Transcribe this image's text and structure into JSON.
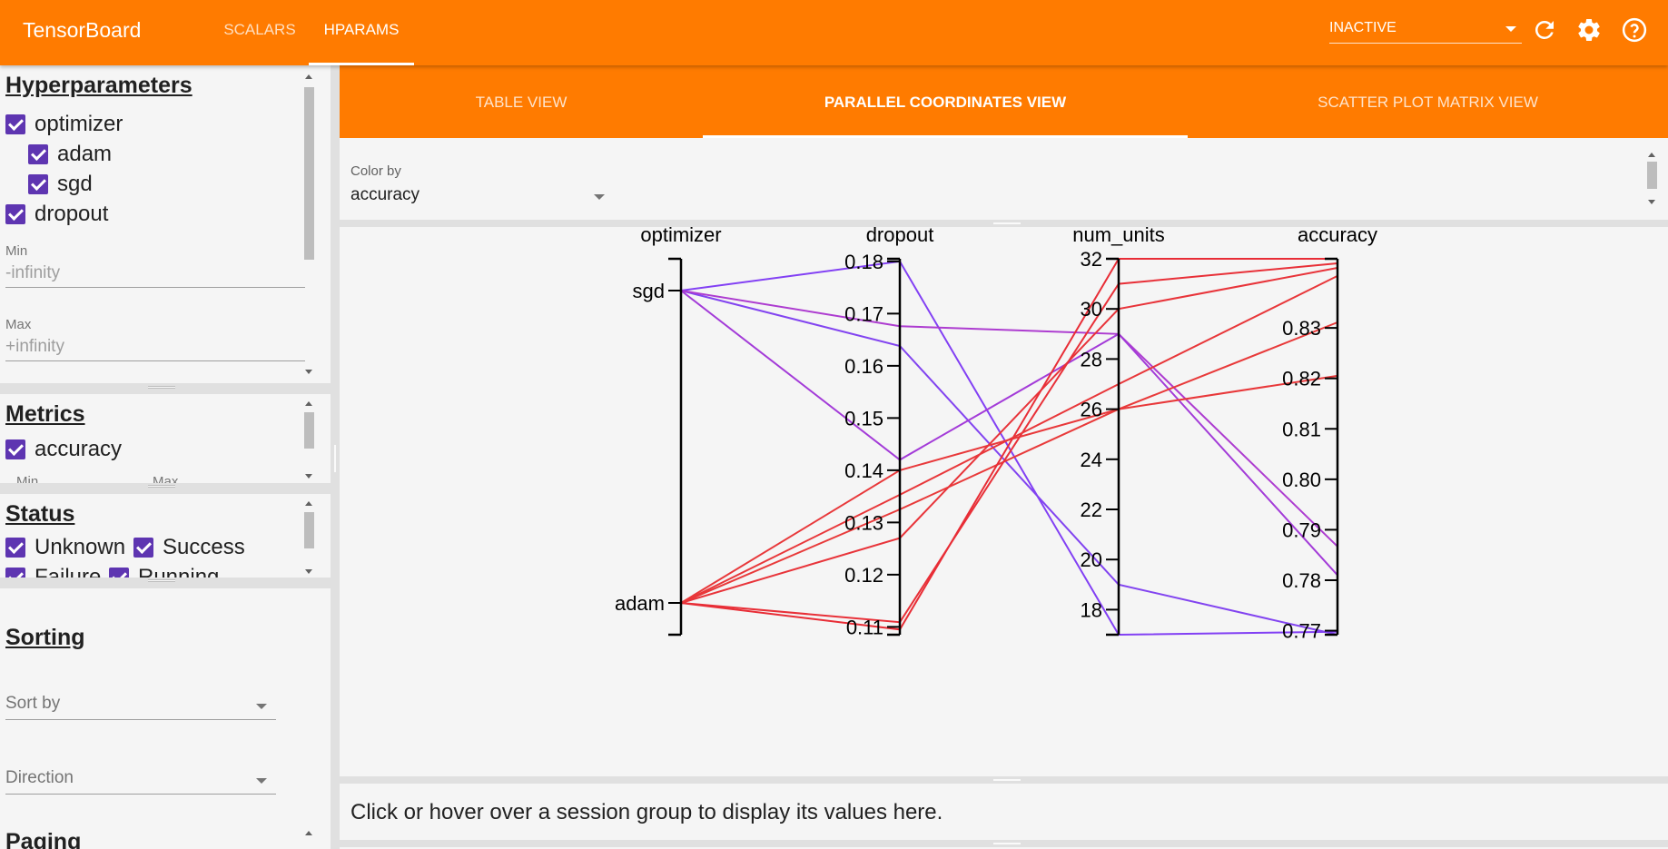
{
  "header": {
    "brand": "TensorBoard",
    "tabs": [
      {
        "label": "SCALARS",
        "active": false
      },
      {
        "label": "HPARAMS",
        "active": true
      }
    ],
    "run_select_value": "INACTIVE",
    "icons": [
      "refresh-icon",
      "settings-icon",
      "help-icon"
    ]
  },
  "sidebar": {
    "hyperparameters": {
      "title": "Hyperparameters",
      "optimizer_label": "optimizer",
      "optimizer_values": [
        "adam",
        "sgd"
      ],
      "dropout_label": "dropout",
      "min_label": "Min",
      "min_value": "-infinity",
      "max_label": "Max",
      "max_value": "+infinity"
    },
    "metrics": {
      "title": "Metrics",
      "items": [
        "accuracy"
      ],
      "min_label": "Min",
      "max_label": "Max"
    },
    "status": {
      "title": "Status",
      "items": [
        "Unknown",
        "Success",
        "Failure",
        "Running"
      ]
    },
    "sorting": {
      "title": "Sorting",
      "sort_by_placeholder": "Sort by",
      "direction_placeholder": "Direction"
    },
    "paging": {
      "title": "Paging"
    }
  },
  "view_tabs": [
    {
      "label": "TABLE VIEW",
      "active": false
    },
    {
      "label": "PARALLEL COORDINATES VIEW",
      "active": true
    },
    {
      "label": "SCATTER PLOT MATRIX VIEW",
      "active": false
    }
  ],
  "color_by": {
    "label": "Color by",
    "value": "accuracy"
  },
  "chart_data": {
    "type": "parallel_coordinates",
    "axes": [
      {
        "name": "optimizer",
        "type": "categorical",
        "categories": [
          "sgd",
          "adam"
        ],
        "tick_labels": [
          "sgd",
          "adam"
        ]
      },
      {
        "name": "dropout",
        "type": "numeric",
        "range": [
          0.1085,
          0.1805
        ],
        "tick_labels": [
          "0.18",
          "0.17",
          "0.16",
          "0.15",
          "0.14",
          "0.13",
          "0.12",
          "0.11"
        ]
      },
      {
        "name": "num_units",
        "type": "numeric",
        "range": [
          17,
          32
        ],
        "tick_labels": [
          "32",
          "30",
          "28",
          "26",
          "24",
          "22",
          "20",
          "18"
        ]
      },
      {
        "name": "accuracy",
        "type": "numeric",
        "range": [
          0.7692,
          0.8437
        ],
        "tick_labels": [
          "0.83",
          "0.82",
          "0.81",
          "0.80",
          "0.79",
          "0.78",
          "0.77"
        ]
      }
    ],
    "lines": [
      {
        "optimizer": "sgd",
        "dropout": 0.18,
        "num_units": 17,
        "accuracy": 0.7698,
        "color": "#8240f4"
      },
      {
        "optimizer": "sgd",
        "dropout": 0.1638,
        "num_units": 19,
        "accuracy": 0.7692,
        "color": "#8244f0"
      },
      {
        "optimizer": "sgd",
        "dropout": 0.1676,
        "num_units": 29,
        "accuracy": 0.7867,
        "color": "#ad3cd0"
      },
      {
        "optimizer": "sgd",
        "dropout": 0.142,
        "num_units": 29,
        "accuracy": 0.781,
        "color": "#a33bd8"
      },
      {
        "optimizer": "adam",
        "dropout": 0.14,
        "num_units": 26,
        "accuracy": 0.8205,
        "color": "#e8383a"
      },
      {
        "optimizer": "adam",
        "dropout": 0.1325,
        "num_units": 26,
        "accuracy": 0.8311,
        "color": "#e83a3a"
      },
      {
        "optimizer": "adam",
        "dropout": 0.127,
        "num_units": 30,
        "accuracy": 0.8419,
        "color": "#e8343a"
      },
      {
        "optimizer": "adam",
        "dropout": 0.1109,
        "num_units": 31,
        "accuracy": 0.8428,
        "color": "#e83038"
      },
      {
        "optimizer": "adam",
        "dropout": 0.1095,
        "num_units": 32,
        "accuracy": 0.8437,
        "color": "#e82d36"
      },
      {
        "optimizer": "adam",
        "dropout": 0.1353,
        "num_units": 27,
        "accuracy": 0.8403,
        "color": "#e8373a"
      }
    ]
  },
  "info": {
    "text": "Click or hover over a session group to display its values here."
  }
}
